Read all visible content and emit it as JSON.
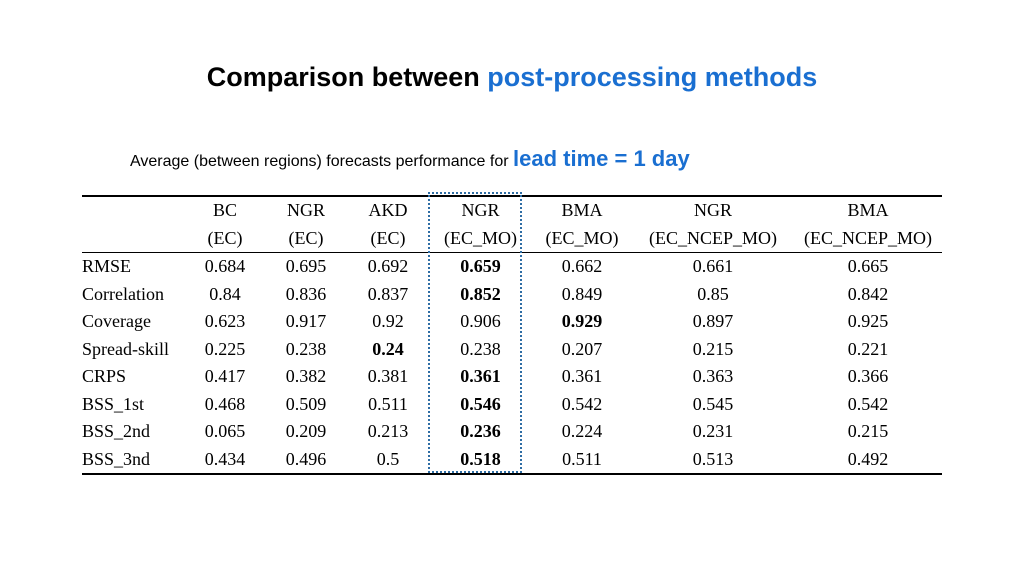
{
  "title": {
    "part1": "Comparison between ",
    "part2": "post-processing methods"
  },
  "subtitle": {
    "text": "Average (between regions) forecasts performance for ",
    "highlight": "lead time = 1 day"
  },
  "accent_color": "#1a6fd1",
  "table": {
    "header_row1": [
      "",
      "BC",
      "NGR",
      "AKD",
      "NGR",
      "BMA",
      "NGR",
      "BMA"
    ],
    "header_row2": [
      "",
      "(EC)",
      "(EC)",
      "(EC)",
      "(EC_MO)",
      "(EC_MO)",
      "(EC_NCEP_MO)",
      "(EC_NCEP_MO)"
    ],
    "rows": [
      {
        "label": "RMSE",
        "values": [
          "0.684",
          "0.695",
          "0.692",
          "0.659",
          "0.662",
          "0.661",
          "0.665"
        ],
        "bold_index": 3
      },
      {
        "label": "Correlation",
        "values": [
          "0.84",
          "0.836",
          "0.837",
          "0.852",
          "0.849",
          "0.85",
          "0.842"
        ],
        "bold_index": 3
      },
      {
        "label": "Coverage",
        "values": [
          "0.623",
          "0.917",
          "0.92",
          "0.906",
          "0.929",
          "0.897",
          "0.925"
        ],
        "bold_index": 4
      },
      {
        "label": "Spread-skill",
        "values": [
          "0.225",
          "0.238",
          "0.24",
          "0.238",
          "0.207",
          "0.215",
          "0.221"
        ],
        "bold_index": 2
      },
      {
        "label": "CRPS",
        "values": [
          "0.417",
          "0.382",
          "0.381",
          "0.361",
          "0.361",
          "0.363",
          "0.366"
        ],
        "bold_index": 3
      },
      {
        "label": "BSS_1st",
        "values": [
          "0.468",
          "0.509",
          "0.511",
          "0.546",
          "0.542",
          "0.545",
          "0.542"
        ],
        "bold_index": 3
      },
      {
        "label": "BSS_2nd",
        "values": [
          "0.065",
          "0.209",
          "0.213",
          "0.236",
          "0.224",
          "0.231",
          "0.215"
        ],
        "bold_index": 3
      },
      {
        "label": "BSS_3nd",
        "values": [
          "0.434",
          "0.496",
          "0.5",
          "0.518",
          "0.511",
          "0.513",
          "0.492"
        ],
        "bold_index": 3
      }
    ]
  }
}
